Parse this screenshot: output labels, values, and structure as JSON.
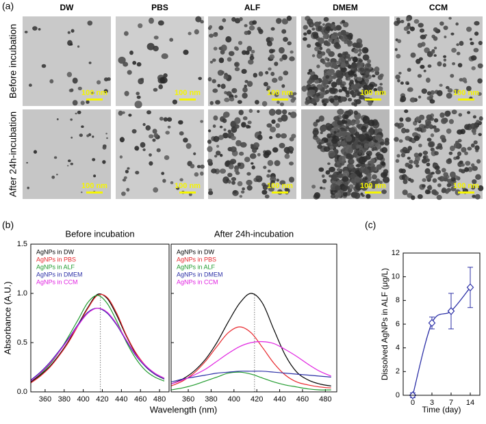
{
  "panel_labels": [
    "(a)",
    "(b)",
    "(c)"
  ],
  "panel_a": {
    "columns": [
      "DW",
      "PBS",
      "ALF",
      "DMEM",
      "CCM"
    ],
    "rows": [
      "Before incubation",
      "After 24h-incubation"
    ],
    "scale_bar": "100 nm"
  },
  "chart_data": [
    {
      "type": "line",
      "title": "Before incubation",
      "x_label": "Wavelength (nm)",
      "y_label": "Absorbance (A.U.)",
      "x": [
        345,
        355,
        365,
        375,
        385,
        395,
        405,
        415,
        425,
        435,
        445,
        455,
        465,
        475,
        485
      ],
      "xlim": [
        345,
        490
      ],
      "xticks": [
        360,
        380,
        400,
        420,
        440,
        460,
        480
      ],
      "ylim": [
        0,
        1.5
      ],
      "yticks": [
        {
          "value": 0,
          "label": "0.0"
        },
        {
          "value": 0.5,
          "label": "0.5"
        },
        {
          "value": 1,
          "label": "1.0"
        },
        {
          "value": 1.5,
          "label": "1.5"
        }
      ],
      "vline": 418,
      "legend": "upper left",
      "series": [
        {
          "name": "AgNPs in DW",
          "color": "#000000",
          "values": [
            0.1,
            0.17,
            0.26,
            0.38,
            0.52,
            0.69,
            0.86,
            0.99,
            0.95,
            0.78,
            0.57,
            0.39,
            0.26,
            0.18,
            0.13
          ]
        },
        {
          "name": "AgNPs in PBS",
          "color": "#e8262b",
          "values": [
            0.09,
            0.16,
            0.25,
            0.37,
            0.51,
            0.68,
            0.85,
            0.98,
            0.96,
            0.8,
            0.58,
            0.4,
            0.27,
            0.18,
            0.13
          ]
        },
        {
          "name": "AgNPs in ALF",
          "color": "#1f9a2c",
          "values": [
            0.11,
            0.18,
            0.28,
            0.41,
            0.57,
            0.74,
            0.91,
            0.98,
            0.9,
            0.72,
            0.51,
            0.34,
            0.22,
            0.15,
            0.11
          ]
        },
        {
          "name": "AgNPs in DMEM",
          "color": "#2b2fa6",
          "values": [
            0.12,
            0.2,
            0.3,
            0.42,
            0.55,
            0.69,
            0.81,
            0.85,
            0.8,
            0.68,
            0.52,
            0.37,
            0.26,
            0.18,
            0.13
          ]
        },
        {
          "name": "AgNPs in CCM",
          "color": "#e021e0",
          "values": [
            0.11,
            0.19,
            0.29,
            0.41,
            0.54,
            0.68,
            0.8,
            0.85,
            0.81,
            0.69,
            0.53,
            0.38,
            0.27,
            0.19,
            0.14
          ]
        }
      ]
    },
    {
      "type": "line",
      "title": "After 24h-incubation",
      "x": [
        345,
        355,
        365,
        375,
        385,
        395,
        405,
        415,
        425,
        435,
        445,
        455,
        465,
        475,
        485
      ],
      "xlim": [
        345,
        490
      ],
      "xticks": [
        360,
        380,
        400,
        420,
        440,
        460,
        480
      ],
      "ylim": [
        0,
        1.5
      ],
      "yticks": [
        0,
        0.5,
        1,
        1.5
      ],
      "show_ytick_labels": false,
      "vline": 418,
      "legend": "upper left",
      "series": [
        {
          "name": "AgNPs in DW",
          "color": "#000000",
          "values": [
            0.08,
            0.13,
            0.21,
            0.33,
            0.5,
            0.71,
            0.9,
            1.0,
            0.9,
            0.63,
            0.37,
            0.2,
            0.12,
            0.08,
            0.06
          ]
        },
        {
          "name": "AgNPs in PBS",
          "color": "#e8262b",
          "values": [
            0.06,
            0.11,
            0.19,
            0.31,
            0.46,
            0.6,
            0.66,
            0.6,
            0.45,
            0.29,
            0.17,
            0.1,
            0.07,
            0.05,
            0.04
          ]
        },
        {
          "name": "AgNPs in ALF",
          "color": "#1f9a2c",
          "values": [
            0.02,
            0.04,
            0.07,
            0.11,
            0.15,
            0.19,
            0.2,
            0.18,
            0.14,
            0.1,
            0.07,
            0.05,
            0.03,
            0.02,
            0.02
          ]
        },
        {
          "name": "AgNPs in DMEM",
          "color": "#2b2fa6",
          "values": [
            0.1,
            0.13,
            0.15,
            0.17,
            0.19,
            0.2,
            0.21,
            0.21,
            0.21,
            0.2,
            0.19,
            0.18,
            0.17,
            0.16,
            0.15
          ]
        },
        {
          "name": "AgNPs in CCM",
          "color": "#e021e0",
          "values": [
            0.08,
            0.12,
            0.17,
            0.23,
            0.31,
            0.39,
            0.46,
            0.5,
            0.51,
            0.49,
            0.43,
            0.36,
            0.28,
            0.21,
            0.16
          ]
        }
      ]
    },
    {
      "type": "scatter",
      "x_label": "Time (day)",
      "y_label": "Dissolved AgNPs in ALF (μg/L)",
      "categories": [
        "0",
        "3",
        "7",
        "14"
      ],
      "values": [
        0,
        6.1,
        7.1,
        9.1
      ],
      "error": [
        0.2,
        0.5,
        1.5,
        1.7
      ],
      "color": "#2b2fa6",
      "fit": true,
      "ylim": [
        0,
        12
      ],
      "yticks": [
        0,
        2,
        4,
        6,
        8,
        10,
        12
      ]
    }
  ]
}
